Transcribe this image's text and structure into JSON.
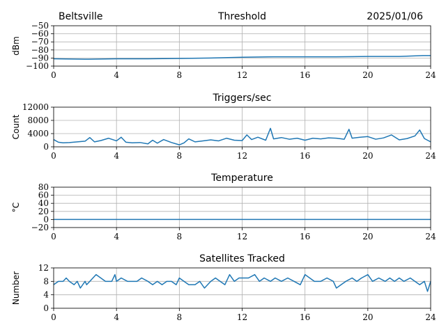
{
  "header": {
    "station": "Beltsville",
    "date": "2025/01/06"
  },
  "chart_data": [
    {
      "id": "threshold",
      "type": "line",
      "title": "Threshold",
      "xlabel": "",
      "ylabel": "dBm",
      "xlim": [
        0,
        24
      ],
      "ylim": [
        -100,
        -50
      ],
      "xticks": [
        0,
        4,
        8,
        12,
        16,
        20,
        24
      ],
      "yticks": [
        -100,
        -90,
        -80,
        -70,
        -60,
        -50
      ],
      "grid": true,
      "series": [
        {
          "x": [
            0,
            2,
            4,
            6,
            8,
            10,
            12,
            14,
            16,
            18,
            20,
            22,
            23.5,
            24
          ],
          "y": [
            -91,
            -91.5,
            -91,
            -91,
            -90.5,
            -90,
            -89,
            -88.5,
            -88.5,
            -88.5,
            -88,
            -88,
            -87,
            -87
          ],
          "color": "#1f77b4"
        }
      ]
    },
    {
      "id": "triggers",
      "type": "line",
      "title": "Triggers/sec",
      "xlabel": "",
      "ylabel": "Count",
      "xlim": [
        0,
        24
      ],
      "ylim": [
        0,
        12000
      ],
      "xticks": [
        0,
        4,
        8,
        12,
        16,
        20,
        24
      ],
      "yticks": [
        0,
        4000,
        8000,
        12000
      ],
      "grid": true,
      "series": [
        {
          "x": [
            0,
            0.3,
            0.6,
            1,
            1.5,
            2,
            2.3,
            2.6,
            3,
            3.5,
            4,
            4.3,
            4.6,
            5,
            5.5,
            6,
            6.3,
            6.6,
            7,
            7.5,
            8,
            8.3,
            8.6,
            9,
            9.5,
            10,
            10.5,
            11,
            11.5,
            12,
            12.3,
            12.6,
            13,
            13.5,
            13.8,
            14,
            14.5,
            15,
            15.5,
            16,
            16.5,
            17,
            17.5,
            18,
            18.5,
            18.8,
            19,
            19.5,
            20,
            20.5,
            21,
            21.5,
            22,
            22.5,
            23,
            23.3,
            23.6,
            24
          ],
          "y": [
            2200,
            1400,
            1200,
            1300,
            1500,
            1700,
            2800,
            1500,
            1900,
            2600,
            1800,
            2900,
            1400,
            1200,
            1300,
            900,
            2000,
            1100,
            2200,
            1300,
            600,
            1200,
            2400,
            1500,
            1800,
            2100,
            1800,
            2600,
            2000,
            1900,
            3600,
            2200,
            2900,
            2000,
            5600,
            2400,
            2800,
            2300,
            2600,
            2000,
            2600,
            2400,
            2700,
            2600,
            2300,
            5300,
            2600,
            2900,
            3100,
            2300,
            2700,
            3600,
            2100,
            2500,
            3300,
            5100,
            2500,
            1500
          ],
          "color": "#1f77b4"
        }
      ]
    },
    {
      "id": "temperature",
      "type": "line",
      "title": "Temperature",
      "xlabel": "",
      "ylabel": "°C",
      "xlim": [
        0,
        24
      ],
      "ylim": [
        -20,
        80
      ],
      "xticks": [
        0,
        4,
        8,
        12,
        16,
        20,
        24
      ],
      "yticks": [
        -20,
        0,
        20,
        40,
        60,
        80
      ],
      "grid": true,
      "series": [
        {
          "x": [
            0,
            24
          ],
          "y": [
            0,
            0
          ],
          "color": "#1f77b4"
        }
      ]
    },
    {
      "id": "satellites",
      "type": "line",
      "title": "Satellites Tracked",
      "xlabel": "",
      "ylabel": "Number",
      "xlim": [
        0,
        24
      ],
      "ylim": [
        0,
        12
      ],
      "xticks": [
        0,
        4,
        8,
        12,
        16,
        20,
        24
      ],
      "yticks": [
        0,
        4,
        8,
        12
      ],
      "grid": true,
      "series": [
        {
          "x": [
            0,
            0.3,
            0.6,
            0.8,
            1.0,
            1.3,
            1.5,
            1.7,
            2.0,
            2.1,
            2.3,
            2.5,
            2.7,
            3.0,
            3.3,
            3.7,
            3.9,
            4.0,
            4.3,
            4.7,
            5.0,
            5.3,
            5.6,
            6.0,
            6.3,
            6.6,
            6.9,
            7.2,
            7.5,
            7.8,
            8.0,
            8.3,
            8.6,
            9.0,
            9.3,
            9.6,
            10.0,
            10.3,
            10.6,
            10.9,
            11.2,
            11.5,
            11.8,
            12.1,
            12.4,
            12.8,
            13.1,
            13.4,
            13.8,
            14.1,
            14.5,
            14.9,
            15.3,
            15.7,
            16.0,
            16.3,
            16.6,
            17.0,
            17.4,
            17.8,
            18.0,
            18.3,
            18.6,
            19.0,
            19.3,
            19.6,
            20.0,
            20.3,
            20.7,
            21.1,
            21.4,
            21.7,
            22.0,
            22.3,
            22.7,
            23.0,
            23.3,
            23.6,
            23.8,
            24.0
          ],
          "y": [
            7,
            8,
            8,
            9,
            8,
            7,
            8,
            6,
            8,
            7,
            8,
            9,
            10,
            9,
            8,
            8,
            10,
            8,
            9,
            8,
            8,
            8,
            9,
            8,
            7,
            8,
            7,
            8,
            8,
            7,
            9,
            8,
            7,
            7,
            8,
            6,
            8,
            9,
            8,
            7,
            10,
            8,
            9,
            9,
            9,
            10,
            8,
            9,
            8,
            9,
            8,
            9,
            8,
            7,
            10,
            9,
            8,
            8,
            9,
            8,
            6,
            7,
            8,
            9,
            8,
            9,
            10,
            8,
            9,
            8,
            9,
            8,
            9,
            8,
            9,
            8,
            7,
            8,
            5,
            8
          ],
          "color": "#1f77b4"
        }
      ]
    }
  ]
}
